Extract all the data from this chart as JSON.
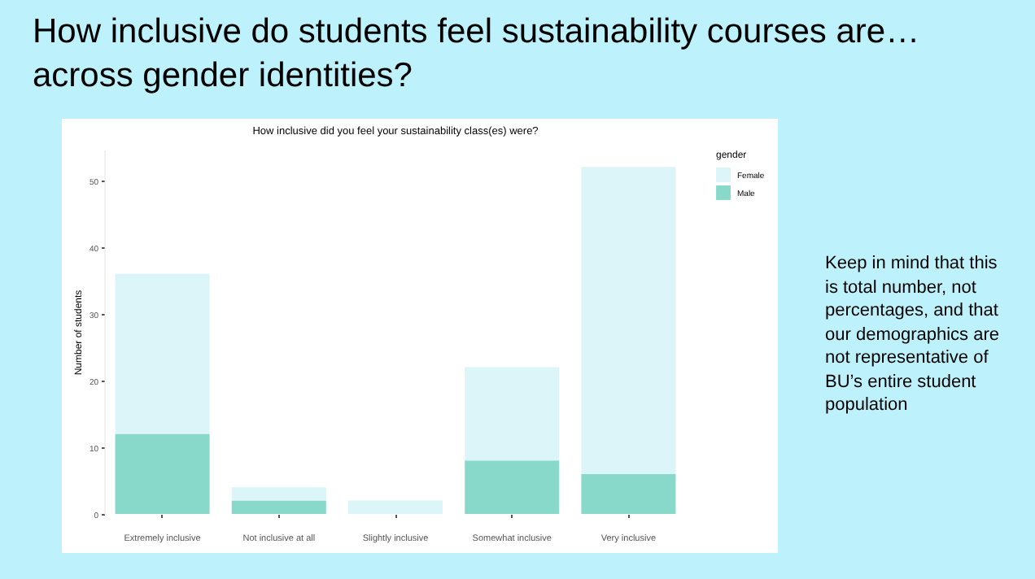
{
  "chart_data": {
    "type": "bar",
    "title": "How inclusive do students feel sustainability courses are… across gender identities?",
    "subtitle": "How inclusive did you feel your sustainability class(es) were?",
    "categories": [
      "Extremely inclusive",
      "Not inclusive at all",
      "Slightly inclusive",
      "Somewhat inclusive",
      "Very inclusive"
    ],
    "series": [
      {
        "name": "Male",
        "color": "#88d9c9",
        "values": [
          12,
          2,
          0,
          8,
          6
        ]
      },
      {
        "name": "Female",
        "color": "#dcf5f8",
        "values": [
          24,
          2,
          2,
          14,
          46
        ]
      }
    ],
    "stacked": true,
    "ylabel": "Number of students",
    "legend_title": "gender",
    "legend": "right",
    "ylim": [
      0,
      54.6
    ],
    "yticks": [
      0,
      10,
      20,
      30,
      40,
      50
    ],
    "grid": false,
    "annotations": [
      "Keep in mind that this is total number, not percentages, and that our demographics are not representative of BU’s entire student population"
    ]
  }
}
